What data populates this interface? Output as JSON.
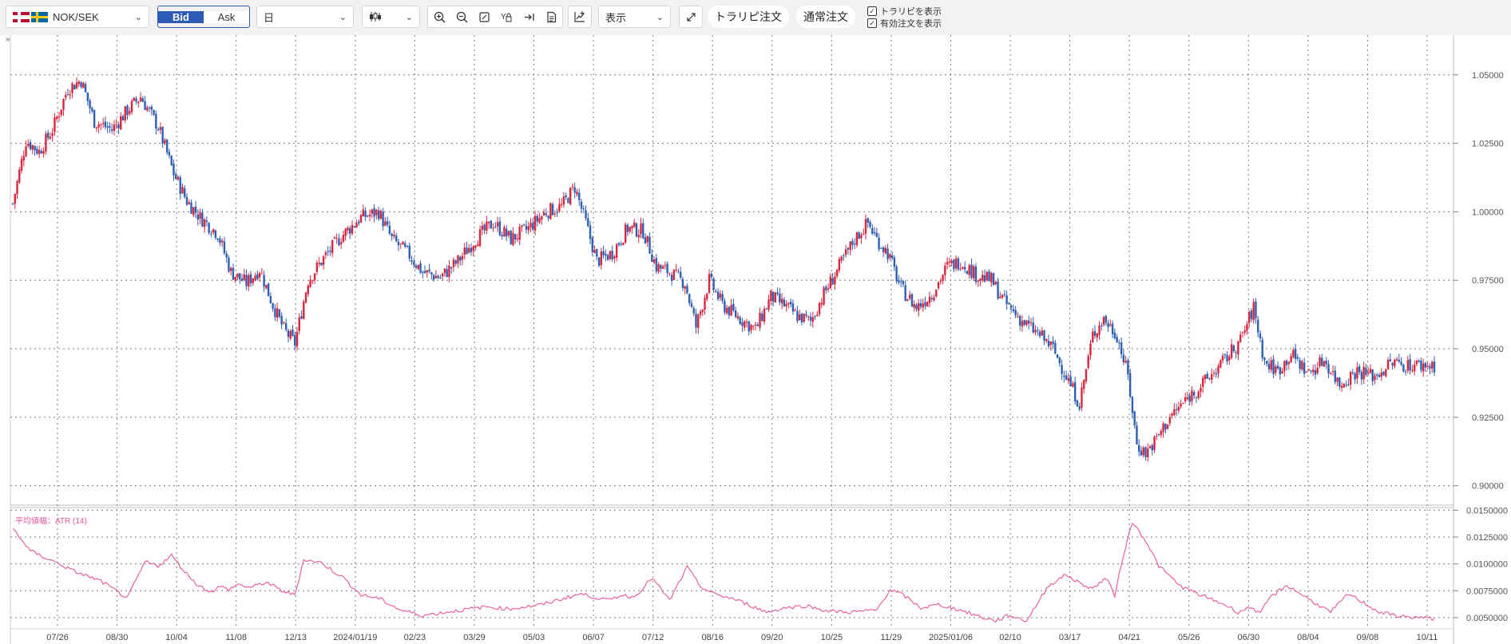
{
  "toolbar": {
    "pair": "NOK/SEK",
    "bid_label": "Bid",
    "ask_label": "Ask",
    "timeframe": "日",
    "chart_style_icon": "candlestick-icon",
    "view_label": "表示",
    "trail_order": "トラリピ注文",
    "normal_order": "通常注文",
    "show_trail_label": "トラリピを表示",
    "show_active_label": "有効注文を表示",
    "show_trail_checked": true,
    "show_active_checked": true,
    "expand_icon": "collapse-arrows-icon"
  },
  "chart_data": [
    {
      "type": "candlestick",
      "symbol": "NOK/SEK",
      "interval": "日",
      "y_ticks": [
        "1.05000",
        "1.02500",
        "1.00000",
        "0.97500",
        "0.95000",
        "0.92500",
        "0.90000"
      ],
      "ylim": [
        0.8935,
        1.0645
      ],
      "x_labels": [
        "07/26",
        "08/30",
        "10/04",
        "11/08",
        "12/13",
        "2024/01/19",
        "02/23",
        "03/29",
        "05/03",
        "06/07",
        "07/12",
        "08/16",
        "09/20",
        "10/25",
        "11/29",
        "2025/01/06",
        "02/10",
        "03/17",
        "04/21",
        "05/26",
        "06/30",
        "08/04",
        "09/08",
        "10/11"
      ],
      "up_color": "#d9263f",
      "down_color": "#2f5fb3",
      "grid": true,
      "close_path": [
        [
          0,
          1.003
        ],
        [
          6,
          1.026
        ],
        [
          12,
          1.022
        ],
        [
          18,
          1.03
        ],
        [
          25,
          1.045
        ],
        [
          31,
          1.048
        ],
        [
          37,
          1.033
        ],
        [
          45,
          1.03
        ],
        [
          52,
          1.037
        ],
        [
          58,
          1.042
        ],
        [
          66,
          1.031
        ],
        [
          73,
          1.014
        ],
        [
          79,
          1.004
        ],
        [
          85,
          0.998
        ],
        [
          93,
          0.992
        ],
        [
          99,
          0.978
        ],
        [
          106,
          0.974
        ],
        [
          112,
          0.979
        ],
        [
          118,
          0.966
        ],
        [
          123,
          0.957
        ],
        [
          128,
          0.952
        ],
        [
          134,
          0.975
        ],
        [
          141,
          0.983
        ],
        [
          149,
          0.991
        ],
        [
          158,
          0.998
        ],
        [
          166,
          1.0
        ],
        [
          172,
          0.99
        ],
        [
          179,
          0.985
        ],
        [
          186,
          0.978
        ],
        [
          194,
          0.976
        ],
        [
          202,
          0.982
        ],
        [
          210,
          0.99
        ],
        [
          218,
          0.996
        ],
        [
          226,
          0.99
        ],
        [
          234,
          0.994
        ],
        [
          242,
          1.0
        ],
        [
          249,
          1.002
        ],
        [
          255,
          1.009
        ],
        [
          260,
          0.996
        ],
        [
          265,
          0.982
        ],
        [
          272,
          0.985
        ],
        [
          279,
          0.994
        ],
        [
          286,
          0.993
        ],
        [
          292,
          0.98
        ],
        [
          298,
          0.978
        ],
        [
          305,
          0.974
        ],
        [
          310,
          0.958
        ],
        [
          316,
          0.975
        ],
        [
          322,
          0.966
        ],
        [
          330,
          0.961
        ],
        [
          337,
          0.957
        ],
        [
          344,
          0.969
        ],
        [
          350,
          0.966
        ],
        [
          356,
          0.962
        ],
        [
          362,
          0.96
        ],
        [
          368,
          0.97
        ],
        [
          375,
          0.98
        ],
        [
          382,
          0.99
        ],
        [
          388,
          0.996
        ],
        [
          392,
          0.99
        ],
        [
          397,
          0.985
        ],
        [
          403,
          0.972
        ],
        [
          410,
          0.965
        ],
        [
          417,
          0.97
        ],
        [
          424,
          0.98
        ],
        [
          430,
          0.982
        ],
        [
          437,
          0.977
        ],
        [
          444,
          0.975
        ],
        [
          450,
          0.967
        ],
        [
          458,
          0.96
        ],
        [
          466,
          0.955
        ],
        [
          472,
          0.95
        ],
        [
          478,
          0.94
        ],
        [
          484,
          0.93
        ],
        [
          490,
          0.955
        ],
        [
          495,
          0.961
        ],
        [
          501,
          0.955
        ],
        [
          506,
          0.94
        ],
        [
          510,
          0.915
        ],
        [
          514,
          0.912
        ],
        [
          518,
          0.916
        ],
        [
          525,
          0.925
        ],
        [
          533,
          0.932
        ],
        [
          541,
          0.938
        ],
        [
          549,
          0.945
        ],
        [
          557,
          0.953
        ],
        [
          563,
          0.965
        ],
        [
          568,
          0.945
        ],
        [
          574,
          0.942
        ],
        [
          580,
          0.948
        ],
        [
          588,
          0.941
        ],
        [
          595,
          0.946
        ],
        [
          602,
          0.937
        ],
        [
          610,
          0.942
        ],
        [
          618,
          0.94
        ],
        [
          626,
          0.945
        ],
        [
          633,
          0.944
        ],
        [
          640,
          0.944
        ],
        [
          645,
          0.944
        ]
      ]
    },
    {
      "type": "line",
      "title": "平均値幅：ATR (14)",
      "color": "#e8559a",
      "y_ticks": [
        "0.0150000",
        "0.0125000",
        "0.0100000",
        "0.0075000",
        "0.0050000"
      ],
      "ylim": [
        0.0041,
        0.0151
      ],
      "x": [
        0,
        8,
        20,
        28,
        40,
        52,
        60,
        66,
        72,
        78,
        84,
        90,
        94,
        98,
        102,
        108,
        115,
        122,
        128,
        132,
        140,
        150,
        158,
        166,
        176,
        186,
        200,
        215,
        225,
        240,
        250,
        258,
        264,
        270,
        276,
        282,
        290,
        298,
        306,
        312,
        318,
        326,
        334,
        342,
        350,
        360,
        370,
        380,
        392,
        398,
        404,
        412,
        420,
        430,
        440,
        446,
        452,
        460,
        470,
        478,
        484,
        490,
        496,
        500,
        504,
        508,
        514,
        520,
        530,
        540,
        550,
        556,
        562,
        566,
        570,
        578,
        586,
        592,
        598,
        606,
        612,
        620,
        630,
        638,
        645
      ],
      "values": [
        0.0133,
        0.0112,
        0.0101,
        0.0093,
        0.0084,
        0.0068,
        0.0102,
        0.0098,
        0.0108,
        0.0093,
        0.008,
        0.0074,
        0.0079,
        0.0076,
        0.0081,
        0.0078,
        0.0083,
        0.0075,
        0.0071,
        0.0104,
        0.0101,
        0.0087,
        0.0071,
        0.0068,
        0.0057,
        0.0052,
        0.0056,
        0.006,
        0.0058,
        0.0062,
        0.0068,
        0.0072,
        0.0069,
        0.0066,
        0.0071,
        0.0069,
        0.0087,
        0.0066,
        0.0097,
        0.0079,
        0.0072,
        0.0068,
        0.0062,
        0.0055,
        0.0059,
        0.0061,
        0.0056,
        0.0055,
        0.0057,
        0.0076,
        0.0071,
        0.0059,
        0.0062,
        0.0057,
        0.005,
        0.0047,
        0.0052,
        0.0047,
        0.008,
        0.009,
        0.0082,
        0.0077,
        0.0087,
        0.0071,
        0.0109,
        0.0139,
        0.0122,
        0.0098,
        0.0079,
        0.007,
        0.0062,
        0.0055,
        0.006,
        0.0053,
        0.0068,
        0.008,
        0.007,
        0.0062,
        0.0055,
        0.0072,
        0.0065,
        0.0055,
        0.0051,
        0.005,
        0.0049
      ]
    }
  ]
}
